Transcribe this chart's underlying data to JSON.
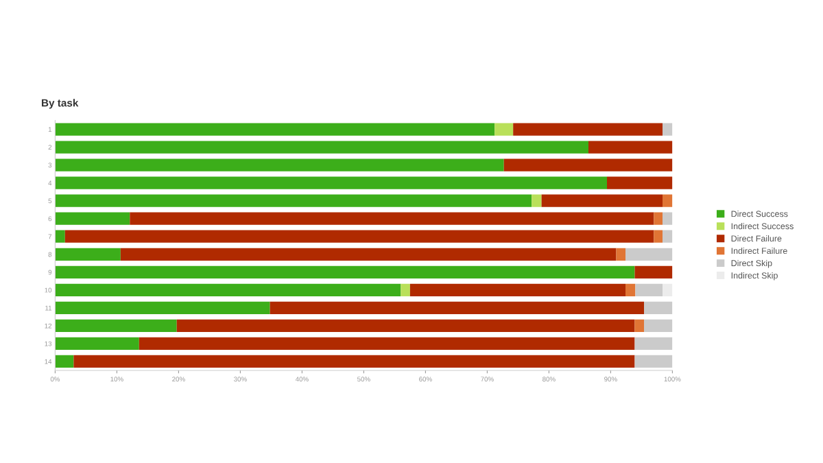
{
  "chart_data": {
    "type": "bar",
    "title": "By task",
    "orientation": "horizontal",
    "stacked": true,
    "categories": [
      "1",
      "2",
      "3",
      "4",
      "5",
      "6",
      "7",
      "8",
      "9",
      "10",
      "11",
      "12",
      "13",
      "14"
    ],
    "series": [
      {
        "name": "Direct Success",
        "color": "#3cae1a",
        "values": [
          71.2,
          86.4,
          72.7,
          89.4,
          77.2,
          12.1,
          1.6,
          10.6,
          93.9,
          56.0,
          34.8,
          19.7,
          13.6,
          3.0
        ]
      },
      {
        "name": "Indirect Success",
        "color": "#b9e05a",
        "values": [
          3.0,
          0,
          0,
          0,
          1.6,
          0,
          0,
          0,
          0,
          1.5,
          0,
          0,
          0,
          0
        ]
      },
      {
        "name": "Direct Failure",
        "color": "#b02a00",
        "values": [
          24.2,
          13.6,
          27.3,
          10.6,
          19.6,
          84.9,
          95.4,
          80.3,
          6.1,
          34.9,
          60.6,
          74.2,
          80.3,
          90.9
        ]
      },
      {
        "name": "Indirect Failure",
        "color": "#e07535",
        "values": [
          0,
          0,
          0,
          0,
          1.6,
          1.4,
          1.4,
          1.5,
          0,
          1.6,
          0,
          1.5,
          0,
          0
        ]
      },
      {
        "name": "Direct Skip",
        "color": "#cbcbcb",
        "values": [
          1.6,
          0,
          0,
          0,
          0,
          1.6,
          1.6,
          7.6,
          0,
          4.4,
          4.6,
          4.6,
          6.1,
          6.1
        ]
      },
      {
        "name": "Indirect Skip",
        "color": "#ececec",
        "values": [
          0,
          0,
          0,
          0,
          0,
          0,
          0,
          0,
          0,
          1.6,
          0,
          0,
          0,
          0
        ]
      }
    ],
    "xlim": [
      0,
      100
    ],
    "xticks": [
      {
        "value": 0,
        "label": "0%"
      },
      {
        "value": 10,
        "label": "10%"
      },
      {
        "value": 20,
        "label": "20%"
      },
      {
        "value": 30,
        "label": "30%"
      },
      {
        "value": 40,
        "label": "40%"
      },
      {
        "value": 50,
        "label": "50%"
      },
      {
        "value": 60,
        "label": "60%"
      },
      {
        "value": 70,
        "label": "70%"
      },
      {
        "value": 80,
        "label": "80%"
      },
      {
        "value": 90,
        "label": "90%"
      },
      {
        "value": 100,
        "label": "100%"
      }
    ],
    "grid": false,
    "legend": "right"
  }
}
